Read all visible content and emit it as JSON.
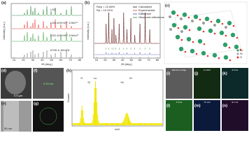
{
  "panel_labels": [
    "(a)",
    "(b)",
    "(c)",
    "(d)",
    "(e)",
    "(f)",
    "(g)",
    "(h)",
    "(i)",
    "(j)",
    "(k)",
    "(l)",
    "(m)",
    "(n)"
  ],
  "a": {
    "traces": [
      "LSO",
      "LSO:10%Yb³⁺,1%Er³⁺",
      "LSO:10%Yb³⁺,1%Ho³⁺",
      "ICSD # 161476"
    ],
    "ylabel": "Intensity (a.u.)",
    "xlabel": "2θ (deg.)",
    "xticks": [
      10,
      20,
      30,
      40,
      50,
      60,
      70,
      80
    ]
  },
  "b": {
    "rwp": "Rwp = 12.68%",
    "rp": "Rp = 10.31%",
    "legend": [
      "Calculated",
      "Experimental",
      "Difference",
      "Observed reflections"
    ],
    "ylabel": "Intensity (a.u.)",
    "xlabel": "2θ (deg.)",
    "xticks": [
      10,
      20,
      30,
      40,
      50,
      60,
      70,
      80
    ]
  },
  "c": {
    "legend": [
      "Lu",
      "Si",
      "O"
    ]
  },
  "d": {
    "scale": "0.5 µm"
  },
  "e": {
    "scale": "50 nm"
  },
  "f": {
    "annotation": "0.29 nm"
  },
  "h": {
    "ylabel": "Counts",
    "xlabel": "keV",
    "peaks": [
      "O",
      "Si",
      "Lu",
      "Yb",
      "Er"
    ]
  },
  "maps": [
    "Electron Image",
    "Lu Mα1",
    "Si Kα1",
    "O Kα1",
    "Yb Lα1",
    "Er Lα1"
  ]
}
